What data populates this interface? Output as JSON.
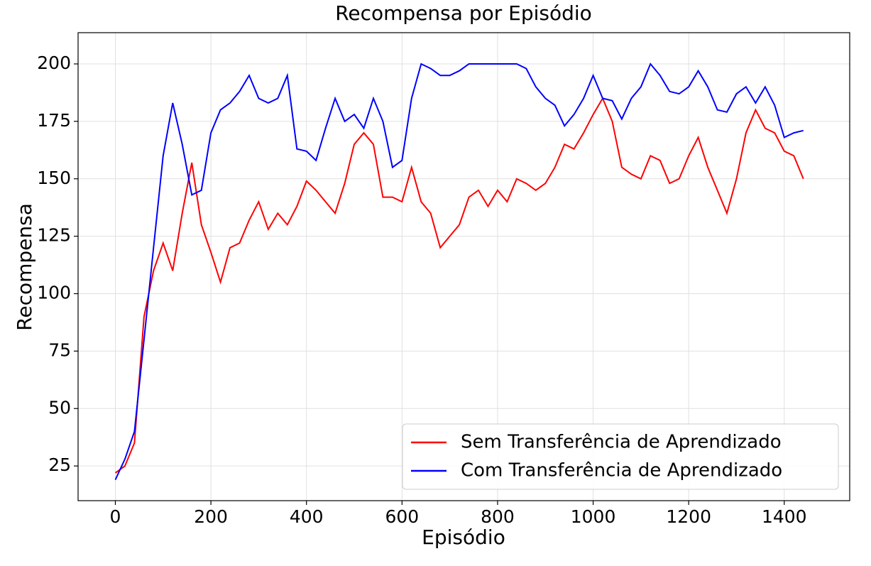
{
  "chart_data": {
    "type": "line",
    "title": "Recompensa por Episódio",
    "x_label": "Episódio",
    "y_label": "Recompensa",
    "x": [
      0,
      20,
      40,
      60,
      80,
      100,
      120,
      140,
      160,
      180,
      200,
      220,
      240,
      260,
      280,
      300,
      320,
      340,
      360,
      380,
      400,
      420,
      440,
      460,
      480,
      500,
      520,
      540,
      560,
      580,
      600,
      620,
      640,
      660,
      680,
      700,
      720,
      740,
      760,
      780,
      800,
      820,
      840,
      860,
      880,
      900,
      920,
      940,
      960,
      980,
      1000,
      1020,
      1040,
      1060,
      1080,
      1100,
      1120,
      1140,
      1160,
      1180,
      1200,
      1220,
      1240,
      1260,
      1280,
      1300,
      1320,
      1340,
      1360,
      1380,
      1400,
      1420,
      1440
    ],
    "series": [
      {
        "name": "Sem Transferência de Aprendizado",
        "color": "#ff0000",
        "values": [
          22,
          25,
          35,
          90,
          110,
          122,
          110,
          135,
          157,
          130,
          118,
          105,
          120,
          122,
          132,
          140,
          128,
          135,
          130,
          138,
          149,
          145,
          140,
          135,
          148,
          165,
          170,
          165,
          142,
          142,
          140,
          155,
          140,
          135,
          120,
          125,
          130,
          142,
          145,
          138,
          145,
          140,
          150,
          148,
          145,
          148,
          155,
          165,
          163,
          170,
          178,
          185,
          175,
          155,
          152,
          150,
          160,
          158,
          148,
          150,
          160,
          168,
          155,
          145,
          135,
          150,
          170,
          180,
          172,
          170,
          162,
          160,
          150
        ]
      },
      {
        "name": "Com Transferência de Aprendizado",
        "color": "#0000ff",
        "values": [
          19,
          28,
          40,
          80,
          120,
          160,
          183,
          165,
          143,
          145,
          170,
          180,
          183,
          188,
          195,
          185,
          183,
          185,
          195,
          163,
          162,
          158,
          172,
          185,
          175,
          178,
          172,
          185,
          175,
          155,
          158,
          185,
          200,
          198,
          195,
          195,
          197,
          200,
          200,
          200,
          200,
          200,
          200,
          198,
          190,
          185,
          182,
          173,
          178,
          185,
          195,
          185,
          184,
          176,
          185,
          190,
          200,
          195,
          188,
          187,
          190,
          197,
          190,
          180,
          179,
          187,
          190,
          183,
          190,
          182,
          168,
          170,
          171
        ]
      }
    ],
    "xlim": [
      -78,
      1537
    ],
    "ylim": [
      9.9,
      213.6
    ],
    "xticks": [
      0,
      200,
      400,
      600,
      800,
      1000,
      1200,
      1400
    ],
    "yticks": [
      25,
      50,
      75,
      100,
      125,
      150,
      175,
      200
    ],
    "grid": true,
    "legend": "lower right"
  }
}
